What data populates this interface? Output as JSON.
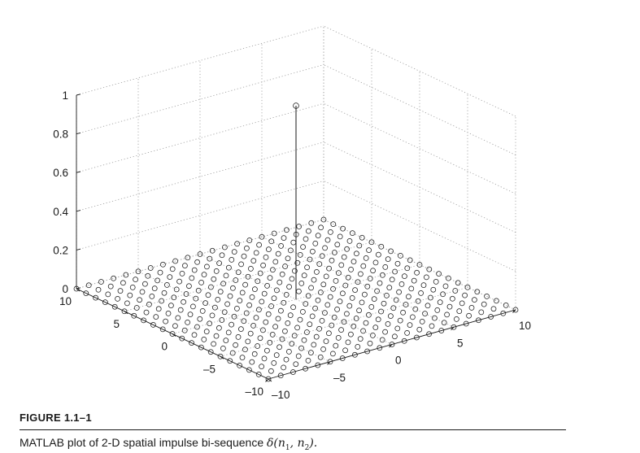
{
  "chart_data": {
    "type": "scatter",
    "style": "3-D stem plot",
    "x": {
      "range": [
        -10,
        10
      ],
      "ticks": [
        -10,
        -5,
        0,
        5,
        10
      ]
    },
    "y": {
      "range": [
        -10,
        10
      ],
      "ticks": [
        -10,
        -5,
        0,
        5,
        10
      ]
    },
    "z": {
      "range": [
        0,
        1
      ],
      "ticks": [
        "0",
        "0.2",
        "0.4",
        "0.6",
        "0.8",
        "1"
      ]
    },
    "grid": true,
    "points": "value 0 at every integer (n1, n2) with -10 <= n1, n2 <= 10, except value 1 at (0, 0)",
    "impulse": {
      "n1": 0,
      "n2": 0,
      "value": 1
    },
    "background_value": 0
  },
  "figure": {
    "label": "FIGURE 1.1–1",
    "caption_text": "MATLAB plot of 2-D spatial impulse bi-sequence",
    "caption_math_delta": "δ(",
    "caption_math_n1": "n",
    "caption_math_sub1": "1",
    "caption_math_sep": ", ",
    "caption_math_n2": "n",
    "caption_math_sub2": "2",
    "caption_math_end": ").",
    "caption_math": "δ(n1, n2)."
  }
}
